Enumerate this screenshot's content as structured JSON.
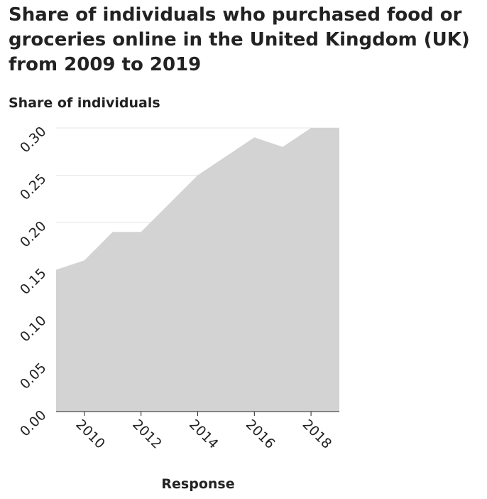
{
  "chart_data": {
    "type": "area",
    "title": "Share of individuals who purchased food or groceries online in the United Kingdom (UK) from 2009 to 2019",
    "ylabel": "Share of individuals",
    "xlabel": "Response",
    "x": [
      2009,
      2010,
      2011,
      2012,
      2013,
      2014,
      2015,
      2016,
      2017,
      2018,
      2019
    ],
    "y": [
      0.15,
      0.16,
      0.19,
      0.19,
      0.22,
      0.25,
      0.27,
      0.29,
      0.28,
      0.3,
      0.3
    ],
    "xlim": [
      2009,
      2019
    ],
    "ylim": [
      0,
      0.3
    ],
    "xticks": [
      2010,
      2012,
      2014,
      2016,
      2018
    ],
    "yticks": [
      0.0,
      0.05,
      0.1,
      0.15,
      0.2,
      0.25,
      0.3
    ],
    "ytick_labels": [
      "0.00",
      "0.05",
      "0.10",
      "0.15",
      "0.20",
      "0.25",
      "0.30"
    ],
    "xtick_labels": [
      "2010",
      "2012",
      "2014",
      "2016",
      "2018"
    ],
    "grid": "horizontal",
    "fill_color": "#d3d3d3",
    "grid_color": "#e6e6e6",
    "axis_color": "#222222"
  }
}
